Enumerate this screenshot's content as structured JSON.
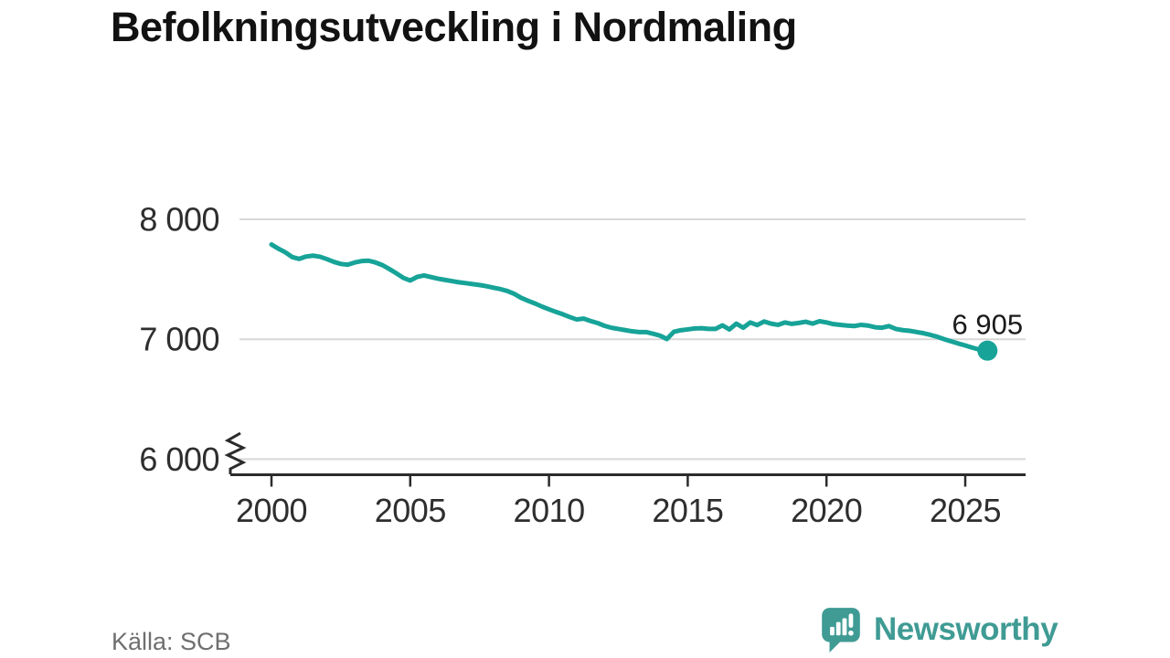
{
  "page": {
    "title": "Befolkningsutveckling i Nordmaling",
    "source": "Källa: SCB"
  },
  "branding": {
    "name": "Newsworthy",
    "logo_icon": "speech-bubble-bar-chart-icon"
  },
  "colors": {
    "background": "#ffffff",
    "line": "#17a398",
    "point": "#17a398",
    "grid": "#d8d8d8",
    "axis": "#2b2b2b",
    "tick_label": "#2e2e2e",
    "title": "#121212",
    "end_label": "#1a1a1a",
    "source_text": "#6f6f6f",
    "brand": "#3f9b94"
  },
  "chart_data": {
    "type": "line",
    "title": "Befolkningsutveckling i Nordmaling",
    "xlabel": "",
    "ylabel": "",
    "grid": true,
    "legend": false,
    "y_axis_break": true,
    "ylim": [
      6000,
      8000
    ],
    "xlim": [
      2000,
      2027.2
    ],
    "yticks": [
      {
        "value": 8000,
        "label": "8 000"
      },
      {
        "value": 7000,
        "label": "7 000"
      },
      {
        "value": 6000,
        "label": "6 000"
      }
    ],
    "xticks": [
      {
        "value": 2000,
        "label": "2000"
      },
      {
        "value": 2005,
        "label": "2005"
      },
      {
        "value": 2010,
        "label": "2010"
      },
      {
        "value": 2015,
        "label": "2015"
      },
      {
        "value": 2020,
        "label": "2020"
      },
      {
        "value": 2025,
        "label": "2025"
      }
    ],
    "x": [
      2000,
      2000.25,
      2000.5,
      2000.75,
      2001,
      2001.25,
      2001.5,
      2001.75,
      2002,
      2002.25,
      2002.5,
      2002.75,
      2003,
      2003.25,
      2003.5,
      2003.75,
      2004,
      2004.25,
      2004.5,
      2004.75,
      2005,
      2005.25,
      2005.5,
      2005.75,
      2006,
      2006.25,
      2006.5,
      2006.75,
      2007,
      2007.25,
      2007.5,
      2007.75,
      2008,
      2008.25,
      2008.5,
      2008.75,
      2009,
      2009.25,
      2009.5,
      2009.75,
      2010,
      2010.25,
      2010.5,
      2010.75,
      2011,
      2011.25,
      2011.5,
      2011.75,
      2012,
      2012.25,
      2012.5,
      2012.75,
      2013,
      2013.25,
      2013.5,
      2013.75,
      2014,
      2014.25,
      2014.5,
      2014.75,
      2015,
      2015.25,
      2015.5,
      2015.75,
      2016,
      2016.25,
      2016.5,
      2016.75,
      2017,
      2017.25,
      2017.5,
      2017.75,
      2018,
      2018.25,
      2018.5,
      2018.75,
      2019,
      2019.25,
      2019.5,
      2019.75,
      2020,
      2020.25,
      2020.5,
      2020.75,
      2021,
      2021.25,
      2021.5,
      2021.75,
      2022,
      2022.25,
      2022.5,
      2022.75,
      2023,
      2023.25,
      2023.5,
      2023.75,
      2024,
      2024.25,
      2024.5,
      2024.75,
      2025,
      2025.25,
      2025.5,
      2025.8
    ],
    "values": [
      7790,
      7755,
      7725,
      7685,
      7670,
      7690,
      7697,
      7688,
      7668,
      7645,
      7628,
      7622,
      7640,
      7652,
      7655,
      7640,
      7618,
      7585,
      7550,
      7512,
      7490,
      7520,
      7532,
      7518,
      7505,
      7495,
      7485,
      7475,
      7468,
      7460,
      7452,
      7442,
      7430,
      7418,
      7402,
      7378,
      7345,
      7320,
      7298,
      7272,
      7250,
      7228,
      7208,
      7185,
      7165,
      7172,
      7152,
      7135,
      7112,
      7096,
      7086,
      7076,
      7066,
      7060,
      7060,
      7046,
      7030,
      7002,
      7062,
      7075,
      7082,
      7090,
      7092,
      7086,
      7086,
      7116,
      7082,
      7130,
      7096,
      7140,
      7118,
      7148,
      7130,
      7120,
      7140,
      7128,
      7136,
      7146,
      7130,
      7150,
      7140,
      7126,
      7120,
      7114,
      7110,
      7120,
      7114,
      7100,
      7096,
      7110,
      7086,
      7076,
      7070,
      7060,
      7050,
      7036,
      7020,
      7000,
      6982,
      6964,
      6948,
      6930,
      6914,
      6905
    ],
    "end_point": {
      "x": 2025.8,
      "value": 6905,
      "label": "6 905"
    }
  }
}
